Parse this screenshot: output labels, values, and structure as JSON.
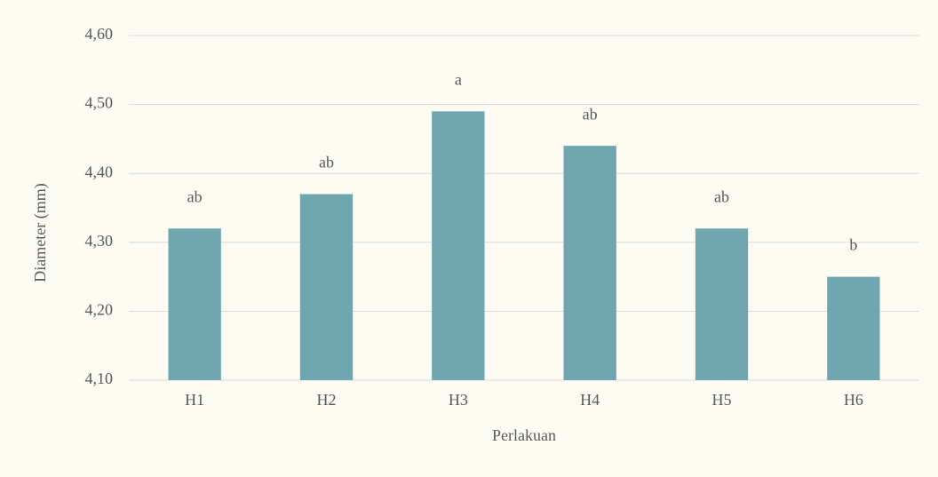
{
  "chart_data": {
    "type": "bar",
    "x_label": "Perlakuan",
    "y_label": "Diameter (mm)",
    "categories": [
      "H1",
      "H2",
      "H3",
      "H4",
      "H5",
      "H6"
    ],
    "values": [
      4.32,
      4.37,
      4.49,
      4.44,
      4.32,
      4.25
    ],
    "significance_letters": [
      "ab",
      "ab",
      "a",
      "ab",
      "ab",
      "b"
    ],
    "color": "#6fa6b0",
    "ylim": [
      4.1,
      4.6
    ],
    "yticks": [
      {
        "value": 4.1,
        "label": "4,10"
      },
      {
        "value": 4.2,
        "label": "4,20"
      },
      {
        "value": 4.3,
        "label": "4,30"
      },
      {
        "value": 4.4,
        "label": "4,40"
      },
      {
        "value": 4.5,
        "label": "4,50"
      },
      {
        "value": 4.6,
        "label": "4,60"
      }
    ],
    "grid": true
  }
}
